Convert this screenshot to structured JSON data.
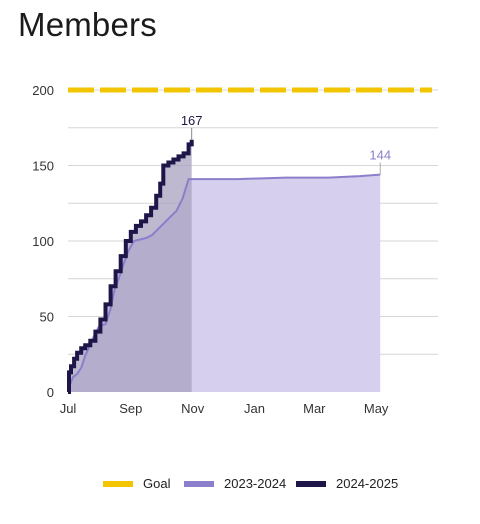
{
  "page": {
    "title": "Members"
  },
  "colors": {
    "goal": "#f2c500",
    "series_2023": "#8b7fcc",
    "series_2023_fill": "#d6d0ee",
    "series_2024": "#1e1548",
    "series_2024_fill": "#a8a2bf",
    "grid": "#d6d6d6"
  },
  "chart_data": {
    "type": "area",
    "title": "Members",
    "xlabel": "",
    "ylabel": "",
    "x_ticks": [
      "Jul",
      "Sep",
      "Nov",
      "Jan",
      "Mar",
      "May"
    ],
    "y_ticks": [
      "0",
      "50",
      "100",
      "150",
      "200"
    ],
    "ylim": [
      0,
      200
    ],
    "grid": true,
    "legend_position": "bottom",
    "goal": {
      "name": "Goal",
      "value": 200
    },
    "series": [
      {
        "name": "2023-2024",
        "end_label": "144",
        "points": [
          [
            "Jul 1",
            0
          ],
          [
            "Jul 3",
            5
          ],
          [
            "Jul 6",
            10
          ],
          [
            "Jul 10",
            12
          ],
          [
            "Jul 14",
            16
          ],
          [
            "Jul 18",
            24
          ],
          [
            "Jul 22",
            30
          ],
          [
            "Jul 26",
            36
          ],
          [
            "Aug 1",
            44
          ],
          [
            "Aug 7",
            45
          ],
          [
            "Aug 12",
            55
          ],
          [
            "Aug 16",
            68
          ],
          [
            "Aug 20",
            75
          ],
          [
            "Aug 25",
            85
          ],
          [
            "Aug 30",
            94
          ],
          [
            "Sep 4",
            100
          ],
          [
            "Sep 10",
            101
          ],
          [
            "Sep 16",
            102
          ],
          [
            "Sep 22",
            104
          ],
          [
            "Sep 28",
            108
          ],
          [
            "Oct 4",
            112
          ],
          [
            "Oct 10",
            116
          ],
          [
            "Oct 16",
            120
          ],
          [
            "Oct 22",
            128
          ],
          [
            "Oct 28",
            141
          ],
          [
            "Nov 1",
            141
          ],
          [
            "Dec 15",
            141
          ],
          [
            "Feb 1",
            142
          ],
          [
            "Mar 15",
            142
          ],
          [
            "Apr 15",
            143
          ],
          [
            "May 5",
            144
          ]
        ]
      },
      {
        "name": "2024-2025",
        "end_label": "167",
        "points": [
          [
            "Jul 1",
            0
          ],
          [
            "Jul 2",
            13
          ],
          [
            "Jul 4",
            17
          ],
          [
            "Jul 7",
            22
          ],
          [
            "Jul 10",
            26
          ],
          [
            "Jul 14",
            29
          ],
          [
            "Jul 18",
            31
          ],
          [
            "Jul 23",
            34
          ],
          [
            "Jul 28",
            40
          ],
          [
            "Aug 2",
            48
          ],
          [
            "Aug 7",
            58
          ],
          [
            "Aug 12",
            70
          ],
          [
            "Aug 17",
            80
          ],
          [
            "Aug 22",
            90
          ],
          [
            "Aug 27",
            100
          ],
          [
            "Sep 1",
            106
          ],
          [
            "Sep 6",
            110
          ],
          [
            "Sep 11",
            113
          ],
          [
            "Sep 16",
            117
          ],
          [
            "Sep 21",
            122
          ],
          [
            "Sep 26",
            130
          ],
          [
            "Sep 30",
            138
          ],
          [
            "Oct 3",
            150
          ],
          [
            "Oct 8",
            152
          ],
          [
            "Oct 13",
            154
          ],
          [
            "Oct 18",
            156
          ],
          [
            "Oct 23",
            158
          ],
          [
            "Oct 28",
            164
          ],
          [
            "Oct 31",
            167
          ]
        ]
      }
    ]
  },
  "legend": {
    "items": [
      {
        "label": "Goal"
      },
      {
        "label": "2023-2024"
      },
      {
        "label": "2024-2025"
      }
    ]
  }
}
